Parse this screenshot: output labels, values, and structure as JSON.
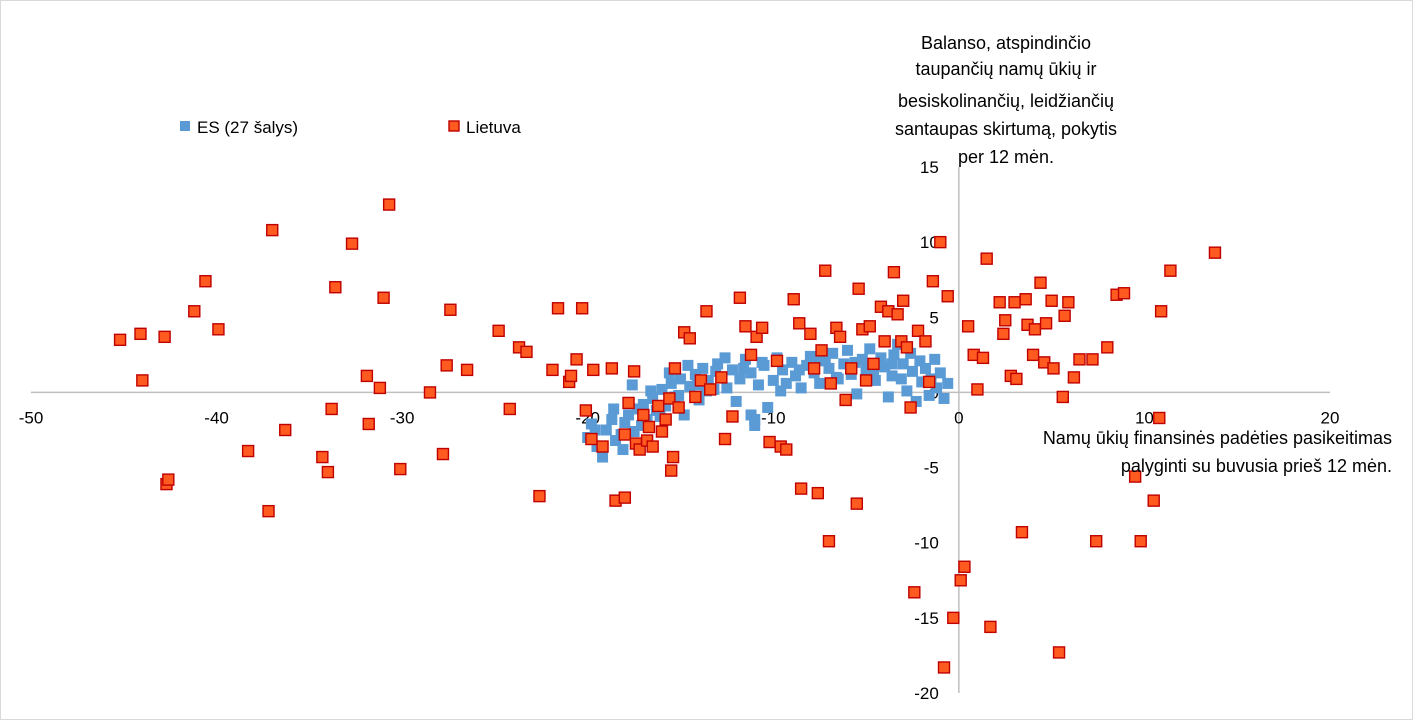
{
  "chart_data": {
    "type": "scatter",
    "xlabel": [
      "Namų ūkių finansinės padėties pasikeitimas",
      "palyginti su buvusia prieš 12 mėn."
    ],
    "ylabel": [
      "Balanso, atspindinčio",
      "taupančių namų ūkių ir",
      "besiskolinančių, leidžiančių",
      "santaupas skirtumą, pokytis",
      "per 12 mėn."
    ],
    "xlim": [
      -50,
      20
    ],
    "ylim": [
      -20,
      15
    ],
    "xticks": [
      "-50",
      "-40",
      "-30",
      "-20",
      "-10",
      "0",
      "10",
      "20"
    ],
    "yticks": [
      "15",
      "10",
      "5",
      "0",
      "-5",
      "-10",
      "-15",
      "-20"
    ],
    "grid": false,
    "legend": "top-left",
    "colors": {
      "es": "#5b9bd5",
      "lietuva_fill": "#ff5a1f",
      "lietuva_edge": "#c00000",
      "axis": "#bfbfbf"
    },
    "series": [
      {
        "name": "ES (27 šalys)",
        "points": [
          [
            -20.0,
            -3.0
          ],
          [
            -19.8,
            -2.1
          ],
          [
            -19.5,
            -3.6
          ],
          [
            -19.2,
            -4.3
          ],
          [
            -19.0,
            -2.5
          ],
          [
            -18.7,
            -1.8
          ],
          [
            -18.5,
            -3.2
          ],
          [
            -18.2,
            -2.8
          ],
          [
            -18.0,
            -2.0
          ],
          [
            -17.8,
            -1.5
          ],
          [
            -17.5,
            -2.6
          ],
          [
            -17.3,
            -1.1
          ],
          [
            -17.0,
            -0.8
          ],
          [
            -16.8,
            -1.8
          ],
          [
            -16.5,
            -0.4
          ],
          [
            -16.3,
            -1.2
          ],
          [
            -16.0,
            0.2
          ],
          [
            -15.8,
            -0.9
          ],
          [
            -15.5,
            0.6
          ],
          [
            -15.3,
            -0.3
          ],
          [
            -15.0,
            0.9
          ],
          [
            -14.8,
            -1.5
          ],
          [
            -14.5,
            0.4
          ],
          [
            -14.2,
            1.2
          ],
          [
            -14.0,
            -0.5
          ],
          [
            -13.8,
            1.6
          ],
          [
            -13.5,
            0.8
          ],
          [
            -13.2,
            0.2
          ],
          [
            -13.0,
            1.9
          ],
          [
            -12.8,
            1.0
          ],
          [
            -12.5,
            0.3
          ],
          [
            -12.2,
            1.5
          ],
          [
            -12.0,
            -0.6
          ],
          [
            -11.8,
            0.9
          ],
          [
            -11.5,
            2.2
          ],
          [
            -11.2,
            1.3
          ],
          [
            -11.0,
            -1.8
          ],
          [
            -10.8,
            0.5
          ],
          [
            -10.5,
            1.8
          ],
          [
            -10.3,
            -1.0
          ],
          [
            -10.0,
            0.8
          ],
          [
            -9.8,
            2.3
          ],
          [
            -9.5,
            1.5
          ],
          [
            -9.3,
            0.6
          ],
          [
            -9.0,
            2.0
          ],
          [
            -8.8,
            1.1
          ],
          [
            -8.5,
            0.3
          ],
          [
            -8.2,
            1.8
          ],
          [
            -8.0,
            2.4
          ],
          [
            -7.8,
            1.3
          ],
          [
            -7.5,
            0.6
          ],
          [
            -7.2,
            2.1
          ],
          [
            -7.0,
            1.6
          ],
          [
            -6.8,
            2.6
          ],
          [
            -6.5,
            0.9
          ],
          [
            -6.2,
            1.9
          ],
          [
            -6.0,
            2.8
          ],
          [
            -5.8,
            1.2
          ],
          [
            -5.5,
            -0.1
          ],
          [
            -5.2,
            2.2
          ],
          [
            -5.0,
            1.5
          ],
          [
            -4.8,
            2.9
          ],
          [
            -4.5,
            0.8
          ],
          [
            -4.2,
            2.3
          ],
          [
            -4.0,
            1.7
          ],
          [
            -3.8,
            -0.3
          ],
          [
            -3.6,
            1.1
          ],
          [
            -3.5,
            2.5
          ],
          [
            -3.3,
            3.2
          ],
          [
            -3.1,
            0.9
          ],
          [
            -3.0,
            1.9
          ],
          [
            -2.8,
            0.1
          ],
          [
            -2.6,
            2.6
          ],
          [
            -2.5,
            1.4
          ],
          [
            -2.3,
            -0.6
          ],
          [
            -2.1,
            2.1
          ],
          [
            -2.0,
            0.7
          ],
          [
            -1.8,
            1.6
          ],
          [
            -1.6,
            -0.2
          ],
          [
            -1.5,
            0.9
          ],
          [
            -1.3,
            2.2
          ],
          [
            -1.2,
            0.3
          ],
          [
            -1.0,
            1.3
          ],
          [
            -0.8,
            -0.4
          ],
          [
            -0.6,
            0.6
          ],
          [
            -17.6,
            0.5
          ],
          [
            -16.6,
            0.1
          ],
          [
            -15.6,
            1.3
          ],
          [
            -14.6,
            1.8
          ],
          [
            -13.6,
            0.1
          ],
          [
            -12.6,
            2.3
          ],
          [
            -11.6,
            1.6
          ],
          [
            -10.6,
            2.0
          ],
          [
            -9.6,
            0.1
          ],
          [
            -8.6,
            1.5
          ],
          [
            -7.6,
            2.2
          ],
          [
            -6.6,
            1.0
          ],
          [
            -5.6,
            2.0
          ],
          [
            -4.6,
            1.2
          ],
          [
            -3.6,
            1.9
          ],
          [
            -19.6,
            -2.5
          ],
          [
            -18.6,
            -1.1
          ],
          [
            -18.1,
            -3.8
          ],
          [
            -17.1,
            -2.2
          ],
          [
            -16.1,
            -1.6
          ],
          [
            -15.1,
            -0.2
          ],
          [
            -14.1,
            0.5
          ],
          [
            -13.1,
            1.4
          ],
          [
            -11.2,
            -1.5
          ],
          [
            -11.0,
            -2.2
          ]
        ]
      },
      {
        "name": "Lietuva",
        "points": [
          [
            -45.2,
            3.5
          ],
          [
            -44.1,
            3.9
          ],
          [
            -44.0,
            0.8
          ],
          [
            -42.8,
            3.7
          ],
          [
            -42.7,
            -6.1
          ],
          [
            -42.6,
            -5.8
          ],
          [
            -41.2,
            5.4
          ],
          [
            -40.6,
            7.4
          ],
          [
            -39.9,
            4.2
          ],
          [
            -38.3,
            -3.9
          ],
          [
            -37.2,
            -7.9
          ],
          [
            -37.0,
            10.8
          ],
          [
            -36.3,
            -2.5
          ],
          [
            -34.3,
            -4.3
          ],
          [
            -34.0,
            -5.3
          ],
          [
            -33.8,
            -1.1
          ],
          [
            -33.6,
            7.0
          ],
          [
            -32.7,
            9.9
          ],
          [
            -31.9,
            1.1
          ],
          [
            -31.8,
            -2.1
          ],
          [
            -31.2,
            0.3
          ],
          [
            -31.0,
            6.3
          ],
          [
            -30.7,
            12.5
          ],
          [
            -30.1,
            -5.1
          ],
          [
            -28.5,
            0.0
          ],
          [
            -27.8,
            -4.1
          ],
          [
            -27.6,
            1.8
          ],
          [
            -27.4,
            5.5
          ],
          [
            -26.5,
            1.5
          ],
          [
            -24.8,
            4.1
          ],
          [
            -24.2,
            -1.1
          ],
          [
            -23.7,
            3.0
          ],
          [
            -23.3,
            2.7
          ],
          [
            -22.6,
            -6.9
          ],
          [
            -21.9,
            1.5
          ],
          [
            -21.6,
            5.6
          ],
          [
            -21.0,
            0.7
          ],
          [
            -20.9,
            1.1
          ],
          [
            -20.6,
            2.2
          ],
          [
            -20.3,
            5.6
          ],
          [
            -20.1,
            -1.2
          ],
          [
            -19.8,
            -3.1
          ],
          [
            -19.7,
            1.5
          ],
          [
            -19.2,
            -3.6
          ],
          [
            -18.7,
            1.6
          ],
          [
            -18.5,
            -7.2
          ],
          [
            -18.0,
            -2.8
          ],
          [
            -18.0,
            -7.0
          ],
          [
            -17.8,
            -0.7
          ],
          [
            -17.5,
            1.4
          ],
          [
            -17.4,
            -3.4
          ],
          [
            -17.2,
            -3.8
          ],
          [
            -17.0,
            -1.5
          ],
          [
            -16.8,
            -3.2
          ],
          [
            -16.7,
            -2.3
          ],
          [
            -16.5,
            -3.6
          ],
          [
            -16.2,
            -0.9
          ],
          [
            -16.0,
            -2.6
          ],
          [
            -15.8,
            -1.8
          ],
          [
            -15.6,
            -0.4
          ],
          [
            -15.5,
            -5.2
          ],
          [
            -15.4,
            -4.3
          ],
          [
            -15.3,
            1.6
          ],
          [
            -15.1,
            -1.0
          ],
          [
            -14.8,
            4.0
          ],
          [
            -14.5,
            3.6
          ],
          [
            -14.2,
            -0.3
          ],
          [
            -13.9,
            0.8
          ],
          [
            -13.6,
            5.4
          ],
          [
            -13.4,
            0.2
          ],
          [
            -12.8,
            1.0
          ],
          [
            -12.6,
            -3.1
          ],
          [
            -12.2,
            -1.6
          ],
          [
            -11.8,
            6.3
          ],
          [
            -11.5,
            4.4
          ],
          [
            -11.2,
            2.5
          ],
          [
            -10.9,
            3.7
          ],
          [
            -10.6,
            4.3
          ],
          [
            -10.2,
            -3.3
          ],
          [
            -9.8,
            2.1
          ],
          [
            -9.6,
            -3.6
          ],
          [
            -9.3,
            -3.8
          ],
          [
            -8.9,
            6.2
          ],
          [
            -8.6,
            4.6
          ],
          [
            -8.5,
            -6.4
          ],
          [
            -8.0,
            3.9
          ],
          [
            -7.8,
            1.6
          ],
          [
            -7.6,
            -6.7
          ],
          [
            -7.4,
            2.8
          ],
          [
            -7.2,
            8.1
          ],
          [
            -7.0,
            -9.9
          ],
          [
            -6.9,
            0.6
          ],
          [
            -6.6,
            4.3
          ],
          [
            -6.4,
            3.7
          ],
          [
            -6.1,
            -0.5
          ],
          [
            -5.8,
            1.6
          ],
          [
            -5.5,
            -7.4
          ],
          [
            -5.4,
            6.9
          ],
          [
            -5.2,
            4.2
          ],
          [
            -5.0,
            0.8
          ],
          [
            -4.8,
            4.4
          ],
          [
            -4.6,
            1.9
          ],
          [
            -4.2,
            5.7
          ],
          [
            -4.0,
            3.4
          ],
          [
            -3.8,
            5.4
          ],
          [
            -3.5,
            8.0
          ],
          [
            -3.3,
            5.2
          ],
          [
            -3.1,
            3.4
          ],
          [
            -3.0,
            6.1
          ],
          [
            -2.8,
            3.0
          ],
          [
            -2.6,
            -1.0
          ],
          [
            -2.4,
            -13.3
          ],
          [
            -2.2,
            4.1
          ],
          [
            -1.8,
            3.4
          ],
          [
            -1.6,
            0.7
          ],
          [
            -1.4,
            7.4
          ],
          [
            -1.0,
            10.0
          ],
          [
            -0.8,
            -18.3
          ],
          [
            -0.6,
            6.4
          ],
          [
            -0.3,
            -15.0
          ],
          [
            0.1,
            -12.5
          ],
          [
            0.3,
            -11.6
          ],
          [
            0.5,
            4.4
          ],
          [
            0.8,
            2.5
          ],
          [
            1.0,
            0.2
          ],
          [
            1.3,
            2.3
          ],
          [
            1.5,
            8.9
          ],
          [
            1.7,
            -15.6
          ],
          [
            2.2,
            6.0
          ],
          [
            2.4,
            3.9
          ],
          [
            2.5,
            4.8
          ],
          [
            2.8,
            1.1
          ],
          [
            3.0,
            6.0
          ],
          [
            3.1,
            0.9
          ],
          [
            3.4,
            -9.3
          ],
          [
            3.6,
            6.2
          ],
          [
            3.7,
            4.5
          ],
          [
            4.0,
            2.5
          ],
          [
            4.1,
            4.2
          ],
          [
            4.4,
            7.3
          ],
          [
            4.6,
            2.0
          ],
          [
            4.7,
            4.6
          ],
          [
            5.0,
            6.1
          ],
          [
            5.1,
            1.6
          ],
          [
            5.4,
            -17.3
          ],
          [
            5.6,
            -0.3
          ],
          [
            5.7,
            5.1
          ],
          [
            5.9,
            6.0
          ],
          [
            6.2,
            1.0
          ],
          [
            6.5,
            2.2
          ],
          [
            7.2,
            2.2
          ],
          [
            7.4,
            -9.9
          ],
          [
            8.0,
            3.0
          ],
          [
            8.5,
            6.5
          ],
          [
            8.9,
            6.6
          ],
          [
            9.5,
            -5.6
          ],
          [
            9.8,
            -9.9
          ],
          [
            10.5,
            -7.2
          ],
          [
            10.8,
            -1.7
          ],
          [
            10.9,
            5.4
          ],
          [
            11.4,
            8.1
          ],
          [
            13.8,
            9.3
          ]
        ]
      }
    ]
  }
}
